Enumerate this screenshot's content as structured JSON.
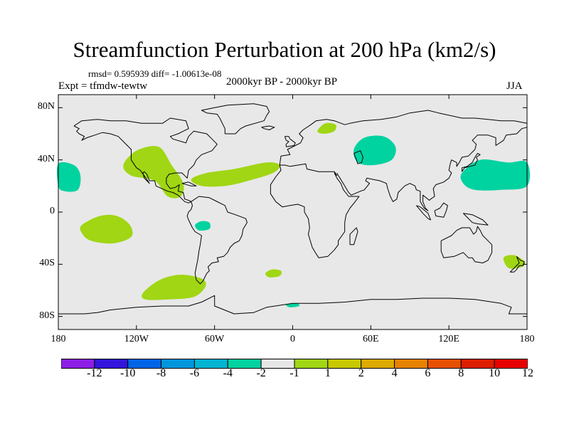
{
  "title": "Streamfunction Perturbation at 200 hPa (km2/s)",
  "stats": "rmsd= 0.595939 diff= -1.00613e-08",
  "period": "2000kyr BP - 2000kyr BP",
  "experiment": "Expt = tfmdw-tewtw",
  "season": "JJA",
  "map": {
    "lon_range": [
      -180,
      180
    ],
    "lat_range": [
      -90,
      90
    ],
    "ocean_color": "#e8e8e8",
    "coast_color": "#000000",
    "y_ticks": [
      {
        "lat": 80,
        "label": "80N"
      },
      {
        "lat": 40,
        "label": "40N"
      },
      {
        "lat": 0,
        "label": "0"
      },
      {
        "lat": -40,
        "label": "40S"
      },
      {
        "lat": -80,
        "label": "80S"
      }
    ],
    "x_ticks": [
      {
        "lon": -180,
        "label": "180"
      },
      {
        "lon": -120,
        "label": "120W"
      },
      {
        "lon": -60,
        "label": "60W"
      },
      {
        "lon": 0,
        "label": "0"
      },
      {
        "lon": 60,
        "label": "60E"
      },
      {
        "lon": 120,
        "label": "120E"
      },
      {
        "lon": 180,
        "label": "180"
      }
    ],
    "anomaly_regions": [
      {
        "name": "east-pacific-positive",
        "level": "1 to 2",
        "color": "#a0d614",
        "lonlat": [
          [
            -130,
            36
          ],
          [
            -120,
            47
          ],
          [
            -103,
            50
          ],
          [
            -93,
            36
          ],
          [
            -84,
            22
          ],
          [
            -86,
            12
          ],
          [
            -96,
            12
          ],
          [
            -106,
            24
          ],
          [
            -124,
            28
          ]
        ]
      },
      {
        "name": "atlantic-positive",
        "level": "1 to 2",
        "color": "#a0d614",
        "lonlat": [
          [
            -78,
            25
          ],
          [
            -66,
            30
          ],
          [
            -45,
            33
          ],
          [
            -20,
            38
          ],
          [
            -10,
            36
          ],
          [
            -15,
            30
          ],
          [
            -34,
            24
          ],
          [
            -52,
            20
          ],
          [
            -70,
            20
          ]
        ]
      },
      {
        "name": "south-pacific-positive",
        "level": "1 to 2",
        "color": "#a0d614",
        "lonlat": [
          [
            -162,
            -10
          ],
          [
            -148,
            -3
          ],
          [
            -135,
            -3
          ],
          [
            -125,
            -10
          ],
          [
            -124,
            -19
          ],
          [
            -138,
            -24
          ],
          [
            -155,
            -22
          ],
          [
            -162,
            -16
          ]
        ]
      },
      {
        "name": "southern-ocean-positive",
        "level": "1 to 2",
        "color": "#a0d614",
        "lonlat": [
          [
            -115,
            -62
          ],
          [
            -102,
            -52
          ],
          [
            -86,
            -48
          ],
          [
            -70,
            -51
          ],
          [
            -67,
            -57
          ],
          [
            -76,
            -65
          ],
          [
            -96,
            -67
          ],
          [
            -113,
            -67
          ]
        ]
      },
      {
        "name": "scandinavia-positive",
        "level": "1 to 2",
        "color": "#a0d614",
        "lonlat": [
          [
            19,
            62
          ],
          [
            25,
            68
          ],
          [
            33,
            67
          ],
          [
            32,
            62
          ],
          [
            24,
            60
          ]
        ]
      },
      {
        "name": "south-atlantic-positive",
        "level": "1 to 2",
        "color": "#a0d614",
        "lonlat": [
          [
            -21,
            -47
          ],
          [
            -16,
            -44
          ],
          [
            -9,
            -45
          ],
          [
            -10,
            -49
          ],
          [
            -18,
            -50
          ]
        ]
      },
      {
        "name": "new-zealand-positive",
        "level": "1 to 2",
        "color": "#a0d614",
        "lonlat": [
          [
            162,
            -35
          ],
          [
            170,
            -33
          ],
          [
            178,
            -38
          ],
          [
            176,
            -42
          ],
          [
            166,
            -43
          ]
        ]
      },
      {
        "name": "north-pacific-west-negative",
        "level": "-2 to -1",
        "color": "#00d2a0",
        "lonlat": [
          [
            -180,
            37
          ],
          [
            -168,
            36
          ],
          [
            -163,
            28
          ],
          [
            -165,
            17
          ],
          [
            -175,
            16
          ],
          [
            -180,
            20
          ]
        ]
      },
      {
        "name": "central-asia-negative",
        "level": "-2 to -1",
        "color": "#00d2a0",
        "lonlat": [
          [
            47,
            48
          ],
          [
            55,
            57
          ],
          [
            70,
            58
          ],
          [
            79,
            50
          ],
          [
            76,
            40
          ],
          [
            62,
            36
          ],
          [
            50,
            38
          ]
        ]
      },
      {
        "name": "north-pacific-east-negative",
        "level": "-2 to -1",
        "color": "#00d2a0",
        "lonlat": [
          [
            130,
            30
          ],
          [
            144,
            40
          ],
          [
            165,
            38
          ],
          [
            180,
            38
          ],
          [
            180,
            20
          ],
          [
            160,
            17
          ],
          [
            140,
            17
          ],
          [
            131,
            22
          ]
        ]
      },
      {
        "name": "amazon-negative",
        "level": "-2 to -1",
        "color": "#00d2a0",
        "lonlat": [
          [
            -75,
            -10
          ],
          [
            -70,
            -7
          ],
          [
            -64,
            -8
          ],
          [
            -64,
            -13
          ],
          [
            -72,
            -14
          ]
        ]
      },
      {
        "name": "antarctic-negative",
        "level": "-2 to -1",
        "color": "#00d2a0",
        "lonlat": [
          [
            -5,
            -71
          ],
          [
            3,
            -70
          ],
          [
            5,
            -72
          ],
          [
            -2,
            -73
          ]
        ]
      }
    ]
  },
  "colorbar": {
    "colors": [
      "#8c1ee6",
      "#3214dc",
      "#0064e6",
      "#0096dc",
      "#00b4d2",
      "#00d2a0",
      "#e6e6e6",
      "#a0d614",
      "#c8c800",
      "#dcaa00",
      "#e68200",
      "#e65000",
      "#dc1e00",
      "#e60000"
    ],
    "labels": [
      "-12",
      "-10",
      "-8",
      "-6",
      "-4",
      "-2",
      "-1",
      "1",
      "2",
      "4",
      "6",
      "8",
      "10",
      "12"
    ]
  }
}
